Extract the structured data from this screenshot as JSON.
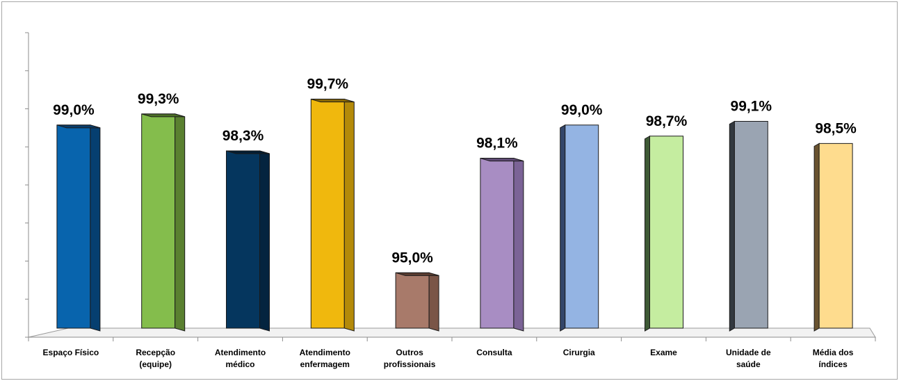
{
  "chart_data": {
    "type": "bar",
    "title": "",
    "xlabel": "",
    "ylabel": "",
    "categories": [
      "Espaço Físico",
      "Recepção\n(equipe)",
      "Atendimento\nmédico",
      "Atendimento\nenfermagem",
      "Outros\nprofissionais",
      "Consulta",
      "Cirurgia",
      "Exame",
      "Unidade de\nsaúde",
      "Média dos\níndices"
    ],
    "values": [
      99.0,
      99.3,
      98.3,
      99.7,
      95.0,
      98.1,
      99.0,
      98.7,
      99.1,
      98.5
    ],
    "value_labels": [
      "99,0%",
      "99,3%",
      "98,3%",
      "99,7%",
      "95,0%",
      "98,1%",
      "99,0%",
      "98,7%",
      "99,1%",
      "98,5%"
    ],
    "ylim": [
      93.5,
      101.5
    ],
    "grid": false,
    "legend": "none",
    "tick_labels_visible": false,
    "colors": [
      {
        "front": "#0864ad",
        "side": "#063f70",
        "top": "#0b3e6c"
      },
      {
        "front": "#84bd4c",
        "side": "#5a8030",
        "top": "#4c6e27"
      },
      {
        "front": "#05365e",
        "side": "#04243f",
        "top": "#031d33"
      },
      {
        "front": "#f0b80d",
        "side": "#b48a09",
        "top": "#8a6906"
      },
      {
        "front": "#a87a6a",
        "side": "#7a5547",
        "top": "#5a3c30"
      },
      {
        "front": "#a88dc3",
        "side": "#7b6396",
        "top": "#5f4a75"
      },
      {
        "front": "#94b4e3",
        "side": "#34466a",
        "top": "#3a4e72"
      },
      {
        "front": "#c5eda0",
        "side": "#3f5a36",
        "top": "#4a6b3d"
      },
      {
        "front": "#9aa4b2",
        "side": "#333940",
        "top": "#2b3036"
      },
      {
        "front": "#fedc8e",
        "side": "#6a5330",
        "top": "#574325"
      }
    ]
  }
}
